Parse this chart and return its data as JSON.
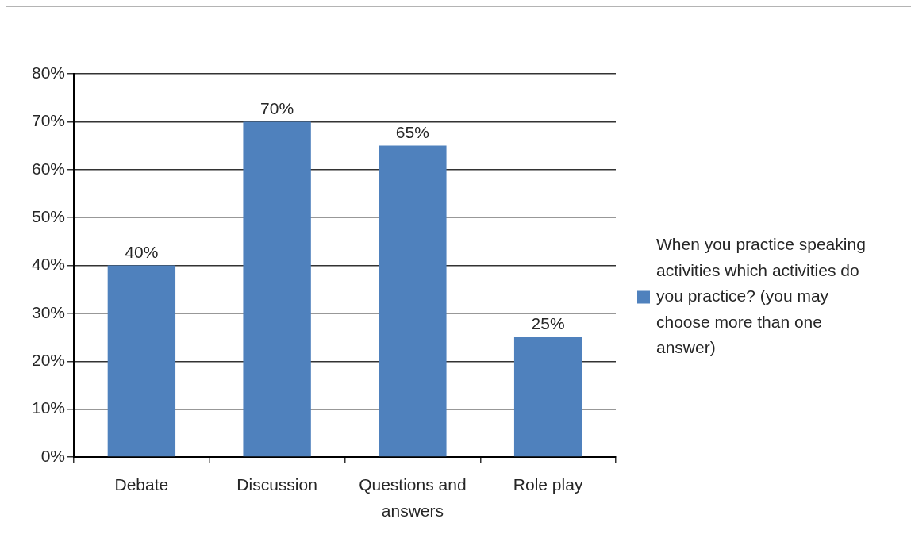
{
  "chart_data": {
    "type": "bar",
    "categories": [
      "Debate",
      "Discussion",
      "Questions and answers",
      "Role play"
    ],
    "series": [
      {
        "name": "When you practice speaking activities which activities do you practice? (you may choose more than one answer)",
        "color": "#4f81bd",
        "values": [
          40,
          70,
          65,
          25
        ],
        "value_labels": [
          "40%",
          "70%",
          "65%",
          "25%"
        ]
      }
    ],
    "ylim": [
      0,
      80
    ],
    "yticks": [
      {
        "value": 0,
        "label": "0%"
      },
      {
        "value": 10,
        "label": "10%"
      },
      {
        "value": 20,
        "label": "20%"
      },
      {
        "value": 30,
        "label": "30%"
      },
      {
        "value": 40,
        "label": "40%"
      },
      {
        "value": 50,
        "label": "50%"
      },
      {
        "value": 60,
        "label": "60%"
      },
      {
        "value": 70,
        "label": "70%"
      },
      {
        "value": 80,
        "label": "80%"
      }
    ],
    "grid": "y",
    "legend": "right"
  }
}
